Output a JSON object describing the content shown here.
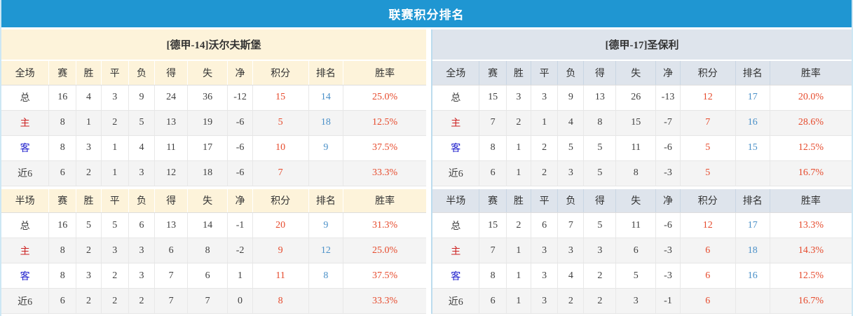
{
  "title": "联赛积分排名",
  "columns": [
    "赛",
    "胜",
    "平",
    "负",
    "得",
    "失",
    "净",
    "积分",
    "排名",
    "胜率"
  ],
  "section_labels": {
    "full": "全场",
    "half": "半场"
  },
  "colors": {
    "title_bar": "#1f96d2",
    "left_header_bg": "#fdf3da",
    "right_header_bg": "#dee4ec",
    "points_red": "#e64a2c",
    "rank_blue": "#4a90c8",
    "home_red": "#cd2222",
    "away_blue": "#2121cd"
  },
  "teams": [
    {
      "name": "[德甲-14]沃尔夫斯堡",
      "theme": "cream",
      "full_rows": [
        {
          "label": "总",
          "type": "total",
          "values": [
            "16",
            "4",
            "3",
            "9",
            "24",
            "36",
            "-12",
            "15",
            "14",
            "25.0%"
          ]
        },
        {
          "label": "主",
          "type": "home",
          "values": [
            "8",
            "1",
            "2",
            "5",
            "13",
            "19",
            "-6",
            "5",
            "18",
            "12.5%"
          ]
        },
        {
          "label": "客",
          "type": "away",
          "values": [
            "8",
            "3",
            "1",
            "4",
            "11",
            "17",
            "-6",
            "10",
            "9",
            "37.5%"
          ]
        },
        {
          "label": "近6",
          "type": "recent",
          "values": [
            "6",
            "2",
            "1",
            "3",
            "12",
            "18",
            "-6",
            "7",
            "",
            "33.3%"
          ]
        }
      ],
      "half_rows": [
        {
          "label": "总",
          "type": "total",
          "values": [
            "16",
            "5",
            "5",
            "6",
            "13",
            "14",
            "-1",
            "20",
            "9",
            "31.3%"
          ]
        },
        {
          "label": "主",
          "type": "home",
          "values": [
            "8",
            "2",
            "3",
            "3",
            "6",
            "8",
            "-2",
            "9",
            "12",
            "25.0%"
          ]
        },
        {
          "label": "客",
          "type": "away",
          "values": [
            "8",
            "3",
            "2",
            "3",
            "7",
            "6",
            "1",
            "11",
            "8",
            "37.5%"
          ]
        },
        {
          "label": "近6",
          "type": "recent",
          "values": [
            "6",
            "2",
            "2",
            "2",
            "7",
            "7",
            "0",
            "8",
            "",
            "33.3%"
          ]
        }
      ]
    },
    {
      "name": "[德甲-17]圣保利",
      "theme": "blue",
      "full_rows": [
        {
          "label": "总",
          "type": "total",
          "values": [
            "15",
            "3",
            "3",
            "9",
            "13",
            "26",
            "-13",
            "12",
            "17",
            "20.0%"
          ]
        },
        {
          "label": "主",
          "type": "home",
          "values": [
            "7",
            "2",
            "1",
            "4",
            "8",
            "15",
            "-7",
            "7",
            "16",
            "28.6%"
          ]
        },
        {
          "label": "客",
          "type": "away",
          "values": [
            "8",
            "1",
            "2",
            "5",
            "5",
            "11",
            "-6",
            "5",
            "15",
            "12.5%"
          ]
        },
        {
          "label": "近6",
          "type": "recent",
          "values": [
            "6",
            "1",
            "2",
            "3",
            "5",
            "8",
            "-3",
            "5",
            "",
            "16.7%"
          ]
        }
      ],
      "half_rows": [
        {
          "label": "总",
          "type": "total",
          "values": [
            "15",
            "2",
            "6",
            "7",
            "5",
            "11",
            "-6",
            "12",
            "17",
            "13.3%"
          ]
        },
        {
          "label": "主",
          "type": "home",
          "values": [
            "7",
            "1",
            "3",
            "3",
            "3",
            "6",
            "-3",
            "6",
            "18",
            "14.3%"
          ]
        },
        {
          "label": "客",
          "type": "away",
          "values": [
            "8",
            "1",
            "3",
            "4",
            "2",
            "5",
            "-3",
            "6",
            "16",
            "12.5%"
          ]
        },
        {
          "label": "近6",
          "type": "recent",
          "values": [
            "6",
            "1",
            "3",
            "2",
            "2",
            "3",
            "-1",
            "6",
            "",
            "16.7%"
          ]
        }
      ]
    }
  ]
}
